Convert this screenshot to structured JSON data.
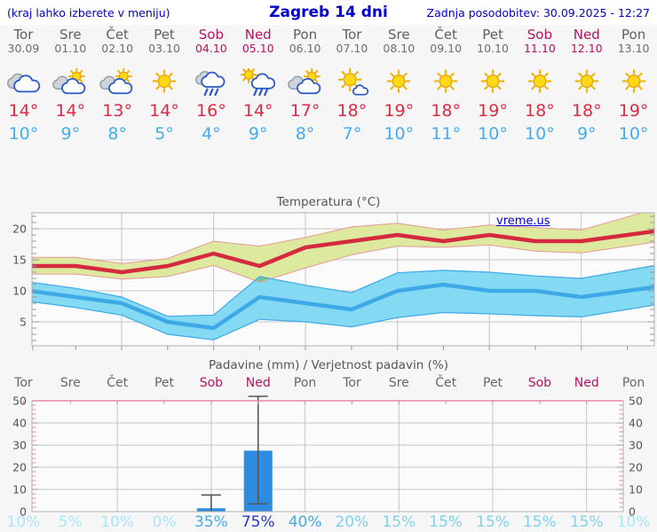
{
  "header": {
    "left_note": "(kraj lahko izberete v meniju)",
    "title": "Zagreb 14 dni",
    "updated": "Zadnja posodobitev: 30.09.2025 - 12:27"
  },
  "temp_section": {
    "title": "Temperatura (°C)",
    "watermark": "vreme.us"
  },
  "precip_section": {
    "title": "Padavine (mm) / Verjetnost padavin (%)"
  },
  "colors": {
    "link_blue": "#0000cc",
    "weekday_text": "#5f5f5f",
    "weekend_text": "#b5135e",
    "temp_max": "#d4293e",
    "temp_min": "#3fa9e8",
    "band_green": "#dce99e",
    "band_green_edge": "#e59a93",
    "band_blue": "#85daf3",
    "band_blue_edge": "#3fa9e8",
    "band_overlap": "#72c693",
    "bar_blue": "#2d8ce2",
    "whisker": "#555555",
    "pink_axis": "#e8899c",
    "pop": {
      "vlow": "#a9e6f6",
      "low": "#7fd2ef",
      "mid": "#49aae9",
      "high": "#2438cc"
    }
  },
  "days": [
    {
      "name": "Tor",
      "date": "30.09",
      "weekend": false,
      "icon": "cloudy",
      "tmax": "14°",
      "tmin": "10°",
      "pop": "10%",
      "pop_level": "vlow"
    },
    {
      "name": "Sre",
      "date": "01.10",
      "weekend": false,
      "icon": "sun-cloud",
      "tmax": "14°",
      "tmin": "9°",
      "pop": "5%",
      "pop_level": "vlow"
    },
    {
      "name": "Čet",
      "date": "02.10",
      "weekend": false,
      "icon": "sun-cloud",
      "tmax": "13°",
      "tmin": "8°",
      "pop": "10%",
      "pop_level": "vlow"
    },
    {
      "name": "Pet",
      "date": "03.10",
      "weekend": false,
      "icon": "sunny",
      "tmax": "14°",
      "tmin": "5°",
      "pop": "0%",
      "pop_level": "vlow"
    },
    {
      "name": "Sob",
      "date": "04.10",
      "weekend": true,
      "icon": "rain",
      "tmax": "16°",
      "tmin": "4°",
      "pop": "35%",
      "pop_level": "mid"
    },
    {
      "name": "Ned",
      "date": "05.10",
      "weekend": true,
      "icon": "sun-rain",
      "tmax": "14°",
      "tmin": "9°",
      "pop": "75%",
      "pop_level": "high"
    },
    {
      "name": "Pon",
      "date": "06.10",
      "weekend": false,
      "icon": "sun-cloud",
      "tmax": "17°",
      "tmin": "8°",
      "pop": "40%",
      "pop_level": "mid"
    },
    {
      "name": "Tor",
      "date": "07.10",
      "weekend": false,
      "icon": "sun-small-cloud",
      "tmax": "18°",
      "tmin": "7°",
      "pop": "20%",
      "pop_level": "low"
    },
    {
      "name": "Sre",
      "date": "08.10",
      "weekend": false,
      "icon": "sunny",
      "tmax": "19°",
      "tmin": "10°",
      "pop": "15%",
      "pop_level": "low"
    },
    {
      "name": "Čet",
      "date": "09.10",
      "weekend": false,
      "icon": "sunny",
      "tmax": "18°",
      "tmin": "11°",
      "pop": "15%",
      "pop_level": "low"
    },
    {
      "name": "Pet",
      "date": "10.10",
      "weekend": false,
      "icon": "sunny",
      "tmax": "19°",
      "tmin": "10°",
      "pop": "15%",
      "pop_level": "low"
    },
    {
      "name": "Sob",
      "date": "11.10",
      "weekend": true,
      "icon": "sunny",
      "tmax": "18°",
      "tmin": "10°",
      "pop": "15%",
      "pop_level": "low"
    },
    {
      "name": "Ned",
      "date": "12.10",
      "weekend": true,
      "icon": "sunny",
      "tmax": "18°",
      "tmin": "9°",
      "pop": "15%",
      "pop_level": "low"
    },
    {
      "name": "Pon",
      "date": "13.10",
      "weekend": false,
      "icon": "sunny",
      "tmax": "19°",
      "tmin": "10°",
      "pop": "10%",
      "pop_level": "vlow"
    }
  ],
  "chart_data": [
    {
      "type": "line",
      "title": "Temperatura (°C)",
      "x": [
        "Tor 30.09",
        "Sre 01.10",
        "Čet 02.10",
        "Pet 03.10",
        "Sob 04.10",
        "Ned 05.10",
        "Pon 06.10",
        "Tor 07.10",
        "Sre 08.10",
        "Čet 09.10",
        "Pet 10.10",
        "Sob 11.10",
        "Ned 12.10",
        "Pon 13.10"
      ],
      "series": [
        {
          "name": "max",
          "values": [
            14,
            14,
            13,
            14,
            16,
            14,
            17,
            18,
            19,
            18,
            19,
            18,
            18,
            19
          ]
        },
        {
          "name": "max_upper",
          "values": [
            15.4,
            15.4,
            14.4,
            15.2,
            18.0,
            17.2,
            18.6,
            20.3,
            20.9,
            19.8,
            20.6,
            20.2,
            19.8,
            21.9
          ]
        },
        {
          "name": "max_lower",
          "values": [
            12.7,
            12.7,
            11.9,
            12.3,
            14.1,
            11.4,
            13.7,
            15.8,
            17.2,
            17.0,
            17.4,
            16.4,
            16.1,
            17.2
          ]
        },
        {
          "name": "min",
          "values": [
            10,
            9,
            8,
            5,
            4,
            9,
            8,
            7,
            10,
            11,
            10,
            10,
            9,
            10
          ]
        },
        {
          "name": "min_upper",
          "values": [
            11.4,
            10.4,
            9.0,
            5.9,
            6.1,
            12.3,
            10.9,
            9.7,
            12.9,
            13.3,
            13.0,
            12.4,
            12.0,
            13.3
          ]
        },
        {
          "name": "min_lower",
          "values": [
            8.3,
            7.3,
            6.1,
            3.0,
            2.1,
            5.4,
            5.0,
            4.2,
            5.7,
            6.5,
            6.3,
            6.0,
            5.8,
            7.0
          ]
        }
      ],
      "ylim": [
        1,
        22.6
      ],
      "yticks": [
        5,
        10,
        15,
        20
      ],
      "grid": true,
      "legend": "none"
    },
    {
      "type": "bar",
      "title": "Padavine (mm) / Verjetnost padavin (%)",
      "categories": [
        "Tor",
        "Sre",
        "Čet",
        "Pet",
        "Sob",
        "Ned",
        "Pon",
        "Tor",
        "Sre",
        "Čet",
        "Pet",
        "Sob",
        "Ned",
        "Pon"
      ],
      "values": [
        0,
        0,
        0,
        0,
        1.5,
        27.5,
        0,
        0,
        0,
        0,
        0,
        0,
        0,
        0
      ],
      "whisker_low": [
        null,
        null,
        null,
        null,
        0,
        3.5,
        null,
        null,
        null,
        null,
        null,
        null,
        null,
        null
      ],
      "whisker_high": [
        null,
        null,
        null,
        null,
        7.5,
        52,
        null,
        null,
        null,
        null,
        null,
        null,
        null,
        null
      ],
      "probabilities": [
        "10%",
        "5%",
        "10%",
        "0%",
        "35%",
        "75%",
        "40%",
        "20%",
        "15%",
        "15%",
        "15%",
        "15%",
        "15%",
        "10%"
      ],
      "ylim": [
        0,
        50
      ],
      "yticks": [
        0,
        10,
        20,
        30,
        40,
        50
      ],
      "grid": true
    }
  ]
}
